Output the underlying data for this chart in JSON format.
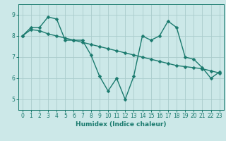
{
  "xlabel": "Humidex (Indice chaleur)",
  "background_color": "#cce8e8",
  "line_color": "#1a7a6e",
  "grid_color": "#aacccc",
  "x_values": [
    0,
    1,
    2,
    3,
    4,
    5,
    6,
    7,
    8,
    9,
    10,
    11,
    12,
    13,
    14,
    15,
    16,
    17,
    18,
    19,
    20,
    21,
    22,
    23
  ],
  "y_series1": [
    8.0,
    8.4,
    8.4,
    8.9,
    8.8,
    7.8,
    7.8,
    7.8,
    7.1,
    6.1,
    5.4,
    6.0,
    5.0,
    6.1,
    8.0,
    7.8,
    8.0,
    8.7,
    8.4,
    7.0,
    6.9,
    6.5,
    6.0,
    6.3
  ],
  "y_series2": [
    8.0,
    8.3,
    8.25,
    8.1,
    8.0,
    7.9,
    7.8,
    7.7,
    7.6,
    7.5,
    7.4,
    7.3,
    7.2,
    7.1,
    7.0,
    6.9,
    6.8,
    6.7,
    6.6,
    6.55,
    6.5,
    6.45,
    6.35,
    6.25
  ],
  "ylim": [
    4.5,
    9.5
  ],
  "xlim": [
    -0.5,
    23.5
  ],
  "yticks": [
    5,
    6,
    7,
    8,
    9
  ],
  "xticks": [
    0,
    1,
    2,
    3,
    4,
    5,
    6,
    7,
    8,
    9,
    10,
    11,
    12,
    13,
    14,
    15,
    16,
    17,
    18,
    19,
    20,
    21,
    22,
    23
  ],
  "marker_size": 2.5,
  "linewidth": 1.0,
  "tick_labelsize": 5.5,
  "xlabel_fontsize": 6.5
}
